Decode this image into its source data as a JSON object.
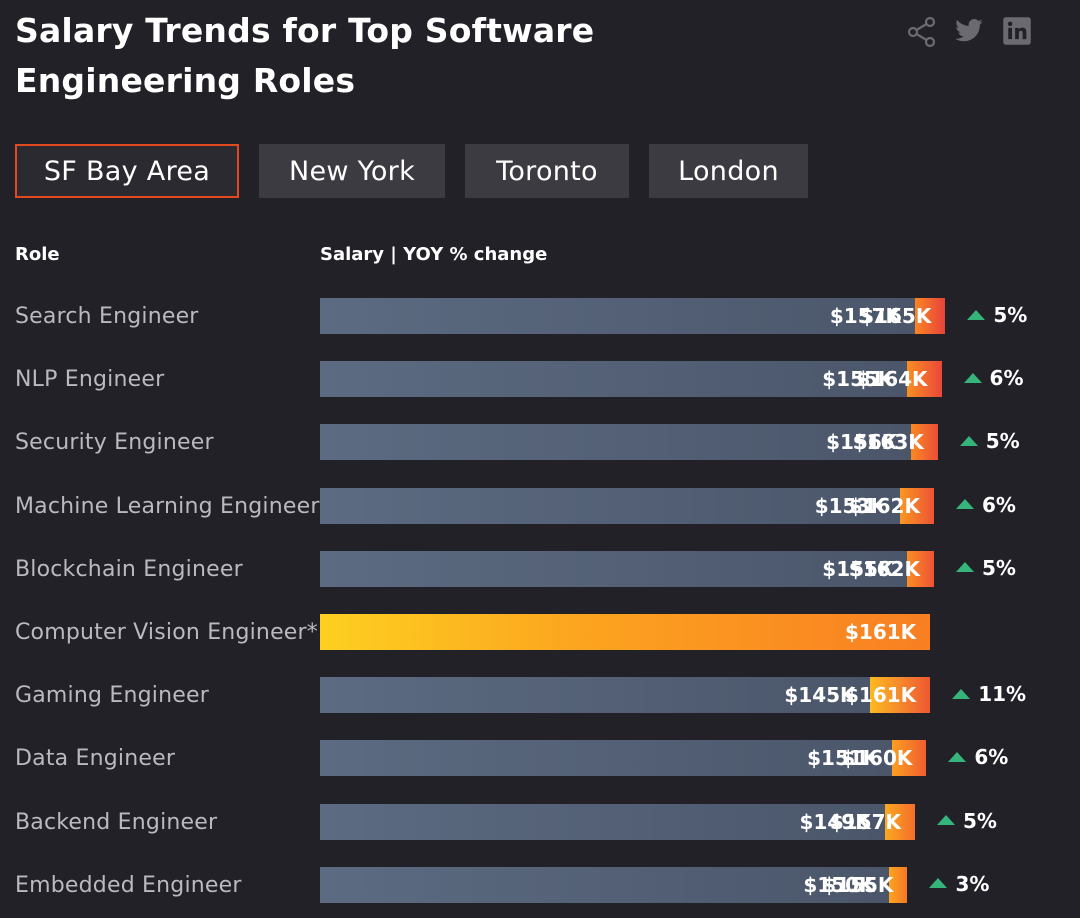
{
  "header": {
    "title_line1": "Salary Trends for Top Software",
    "title_line2": "Engineering Roles"
  },
  "share_icons": [
    "share-icon",
    "twitter-icon",
    "linkedin-icon"
  ],
  "tabs": [
    {
      "label": "SF Bay Area",
      "active": true
    },
    {
      "label": "New York",
      "active": false
    },
    {
      "label": "Toronto",
      "active": false
    },
    {
      "label": "London",
      "active": false
    }
  ],
  "columns": {
    "role": "Role",
    "salary": "Salary | YOY % change"
  },
  "colors": {
    "background": "#222128",
    "previous_bar": "#56627a",
    "current_bar_gradient": [
      "#fdd020",
      "#f97f22",
      "#e8433c"
    ],
    "active_tab_border": "#e2491e",
    "up_arrow": "#35b57a"
  },
  "chart_data": {
    "type": "bar",
    "orientation": "horizontal",
    "title": "Salary Trends for Top Software Engineering Roles",
    "xlabel": "Salary | YOY % change",
    "ylabel": "Role",
    "xlim": [
      0,
      165
    ],
    "units": "$K",
    "categories": [
      "Search Engineer",
      "NLP Engineer",
      "Security Engineer",
      "Machine Learning Engineer",
      "Blockchain Engineer",
      "Computer Vision Engineer*",
      "Gaming Engineer",
      "Data Engineer",
      "Backend Engineer",
      "Embedded Engineer"
    ],
    "series": [
      {
        "name": "Previous year salary",
        "values": [
          157,
          155,
          156,
          153,
          155,
          null,
          145,
          151,
          149,
          150
        ],
        "labels": [
          "$157K",
          "$155K",
          "$156K",
          "$153K",
          "$155K",
          "",
          "$145K",
          "$151K",
          "$149K",
          "$150K"
        ]
      },
      {
        "name": "Current salary",
        "values": [
          165,
          164,
          163,
          162,
          162,
          161,
          161,
          160,
          157,
          155
        ],
        "labels": [
          "$165K",
          "$164K",
          "$163K",
          "$162K",
          "$162K",
          "$161K",
          "$161K",
          "$160K",
          "$157K",
          "$155K"
        ]
      }
    ],
    "yoy_change": [
      "5%",
      "6%",
      "5%",
      "6%",
      "5%",
      "",
      "11%",
      "6%",
      "5%",
      "3%"
    ]
  }
}
